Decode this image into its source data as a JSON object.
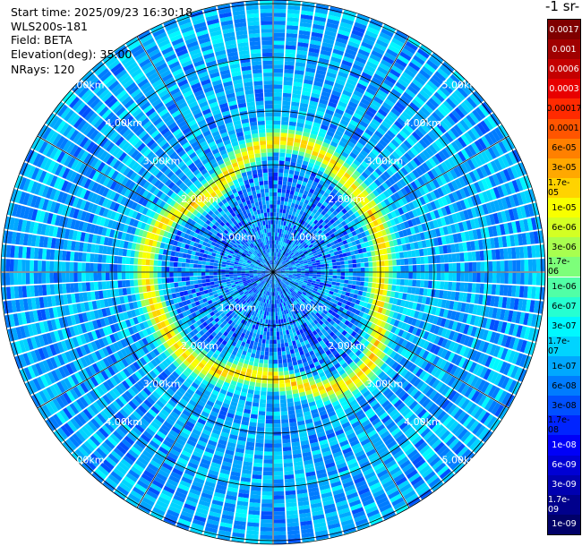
{
  "info": {
    "start_time": "Start time: 2025/09/23 16:30:18",
    "instrument": "WLS200s-181",
    "field": "Field: BETA",
    "elevation": "Elevation(deg): 35.00",
    "nrays": "NRays: 120"
  },
  "colorbar": {
    "units_label": "-1 sr-",
    "ticks": [
      "0.0017",
      "0.001",
      "0.0006",
      "0.0003",
      "0.00017",
      "0.0001",
      "6e-05",
      "3e-05",
      "1.7e-05",
      "1e-05",
      "6e-06",
      "3e-06",
      "1.7e-06",
      "1e-06",
      "6e-07",
      "3e-07",
      "1.7e-07",
      "1e-07",
      "6e-08",
      "3e-08",
      "1.7e-08",
      "1e-08",
      "6e-09",
      "3e-09",
      "1.7e-09",
      "1e-09"
    ],
    "colors": [
      "#7f0000",
      "#a00000",
      "#c40000",
      "#e80000",
      "#ff2a00",
      "#ff5500",
      "#ff8000",
      "#ffa800",
      "#ffd300",
      "#f8ff00",
      "#d4ff23",
      "#a8ff4f",
      "#7dff7a",
      "#51ffa6",
      "#26ffd1",
      "#00f8ff",
      "#00d4ff",
      "#00a8ff",
      "#007cff",
      "#0050ff",
      "#0024ff",
      "#0000f8",
      "#0000d4",
      "#0000b0",
      "#00008c",
      "#000068"
    ]
  },
  "chart_data": {
    "type": "heatmap",
    "projection": "polar (PPI)",
    "variable": "BETA",
    "rays": 120,
    "max_range_km": 5.2,
    "range_rings_km": [
      1,
      2,
      3,
      4,
      5
    ],
    "range_labels": [
      "1.00km",
      "2.00km",
      "3.00km",
      "4.00km",
      "5.00km"
    ],
    "scale": "log",
    "vmin": 1e-09,
    "vmax": 0.0017,
    "typical_background": 1e-07,
    "aerosol_ring": {
      "range_km": 2.2,
      "peak_value": 1.7e-05
    },
    "near_field_value": 6e-08,
    "grid": true
  }
}
